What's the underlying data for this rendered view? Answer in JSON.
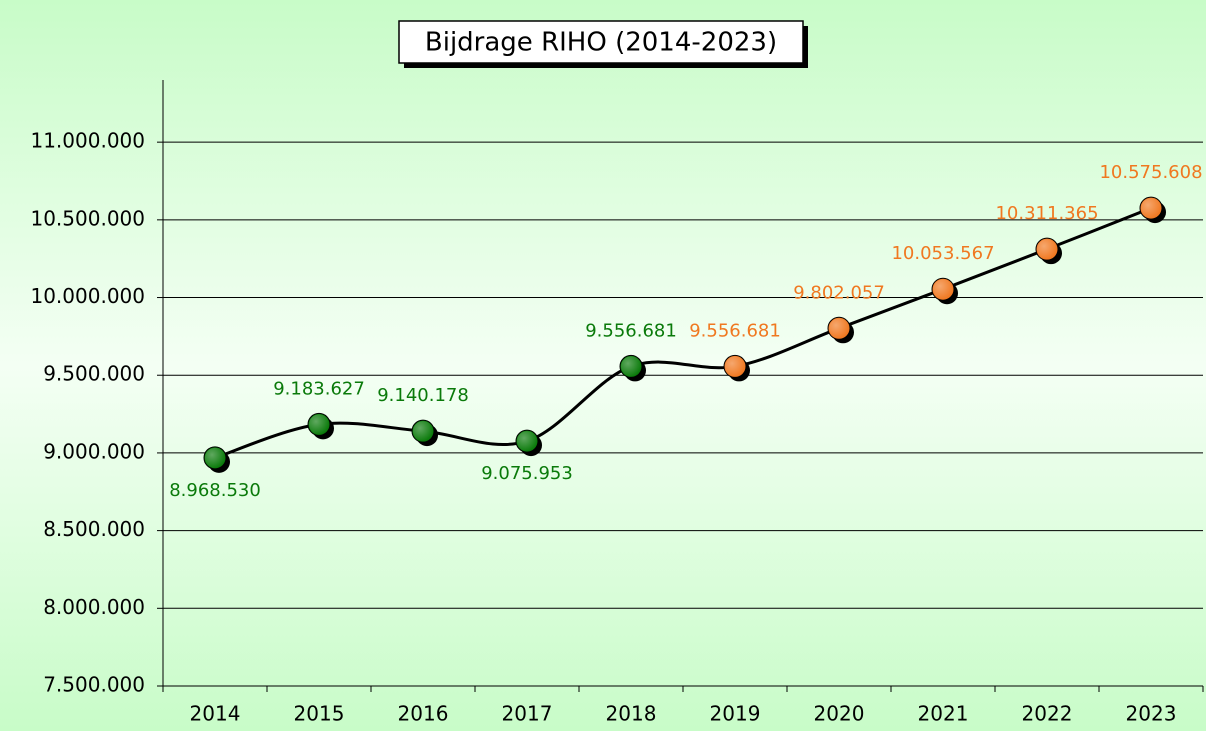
{
  "chart_data": {
    "type": "line",
    "title": "Bijdrage RIHO (2014-2023)",
    "categories": [
      "2014",
      "2015",
      "2016",
      "2017",
      "2018",
      "2019",
      "2020",
      "2021",
      "2022",
      "2023"
    ],
    "series": [
      {
        "values": [
          8968530,
          9183627,
          9140178,
          9075953,
          9556681,
          9556681,
          9802057,
          10053567,
          10311365,
          10575608
        ],
        "value_labels": [
          "8.968.530",
          "9.183.627",
          "9.140.178",
          "9.075.953",
          "9.556.681",
          "9.556.681",
          "9.802.057",
          "10.053.567",
          "10.311.365",
          "10.575.608"
        ],
        "color": "#000000",
        "point_colors": [
          "#0a7a0a",
          "#0a7a0a",
          "#0a7a0a",
          "#0a7a0a",
          "#0a7a0a",
          "#f07820",
          "#f07820",
          "#f07820",
          "#f07820",
          "#f07820"
        ]
      }
    ],
    "ylim": [
      7500000,
      11400000
    ],
    "yticks": [
      {
        "value": 7500000,
        "label": "7.500.000"
      },
      {
        "value": 8000000,
        "label": "8.000.000"
      },
      {
        "value": 8500000,
        "label": "8.500.000"
      },
      {
        "value": 9000000,
        "label": "9.000.000"
      },
      {
        "value": 9500000,
        "label": "9.500.000"
      },
      {
        "value": 10000000,
        "label": "10.000.000"
      },
      {
        "value": 10500000,
        "label": "10.500.000"
      },
      {
        "value": 11000000,
        "label": "11.000.000"
      }
    ],
    "grid": true,
    "smooth": true
  }
}
